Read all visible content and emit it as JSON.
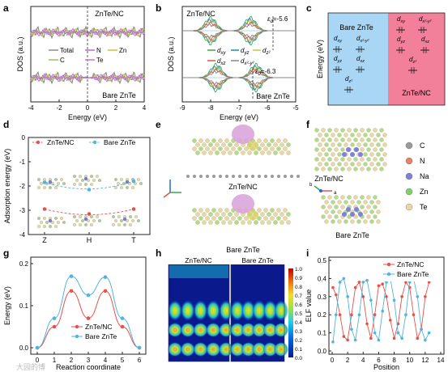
{
  "panel_labels": {
    "a": "a",
    "b": "b",
    "c": "c",
    "d": "d",
    "e": "e",
    "f": "f",
    "g": "g",
    "h": "h",
    "i": "i"
  },
  "colors": {
    "total": "#8a8a8a",
    "n": "#b06ad8",
    "zn": "#c8c23a",
    "c": "#8fc75a",
    "te": "#d070c8",
    "red": "#e8504a",
    "blue": "#4fb4e0",
    "green": "#3aa657",
    "cyan": "#1a8fb0",
    "c_bare_bg": "#aad6f5",
    "c_nc_bg": "#f2809a"
  },
  "watermark": "大园的博",
  "chart_data": [
    {
      "id": "a",
      "type": "line",
      "xlabel": "Energy (eV)",
      "ylabel": "DOS (a.u.)",
      "xlim": [
        -4,
        4
      ],
      "xticks": [
        -4,
        -2,
        0,
        2,
        4
      ],
      "labels": [
        "ZnTe/NC",
        "Bare ZnTe"
      ],
      "legend": [
        "Total",
        "N",
        "Zn",
        "C",
        "Te"
      ],
      "legend_placement": "middle",
      "grid": false
    },
    {
      "id": "b",
      "type": "line",
      "xlabel": "Energy (eV)",
      "ylabel": "DOS (a.u.)",
      "xlim": [
        -9,
        -5
      ],
      "xticks": [
        -9,
        -8,
        -7,
        -6,
        -5
      ],
      "labels": [
        "ZnTe/NC",
        "Bare ZnTe"
      ],
      "legend": [
        "d",
        "d",
        "d",
        "d",
        "d"
      ],
      "legend_sub": [
        "xy",
        "yz",
        "z²",
        "xz",
        "x²-y²"
      ],
      "annotations": [
        {
          "text": "ε",
          "sub": "d",
          "value_text": "=-5.6",
          "x": -5.6
        },
        {
          "text": "ε",
          "sub": "d",
          "value_text": "=-6.3",
          "x": -6.3
        }
      ],
      "grid": false
    },
    {
      "id": "c",
      "type": "table",
      "ylabel": "Energy (eV)",
      "columns": [
        "Bare ZnTe",
        "ZnTe/NC"
      ],
      "bare_levels": [
        "d",
        "d",
        "d",
        "d",
        "d"
      ],
      "bare_sub": [
        "xy",
        "x²-y²",
        "yz",
        "xz",
        "z²"
      ],
      "nc_levels": [
        "d",
        "d",
        "d",
        "d",
        "d"
      ],
      "nc_sub": [
        "xy",
        "x²-y²",
        "yz",
        "xz",
        "z²"
      ]
    },
    {
      "id": "d",
      "type": "line",
      "ylabel": "Adsorption energy (eV)",
      "categories": [
        "Z",
        "H",
        "T"
      ],
      "ylim": [
        -4,
        0
      ],
      "yticks": [
        0,
        -1,
        -2,
        -3,
        -4
      ],
      "series": [
        {
          "name": "ZnTe/NC",
          "values": [
            -2.95,
            -3.15,
            -2.95
          ]
        },
        {
          "name": "Bare ZnTe",
          "values": [
            -1.85,
            -2.15,
            -1.8
          ]
        }
      ],
      "legend_placement": "top",
      "grid": false
    },
    {
      "id": "e",
      "type": "table",
      "labels": [
        "ZnTe/NC",
        "Bare ZnTe"
      ]
    },
    {
      "id": "f",
      "type": "table",
      "labels": [
        "ZnTe/NC",
        "Bare ZnTe"
      ],
      "legend": [
        "C",
        "N",
        "Na",
        "Zn",
        "Te"
      ],
      "axes": [
        "c",
        "b",
        "a"
      ]
    },
    {
      "id": "g",
      "type": "line",
      "xlabel": "Reaction coordinate",
      "ylabel": "Energy (eV)",
      "xlim": [
        0,
        6
      ],
      "xticks": [
        0,
        1,
        2,
        3,
        4,
        5,
        6
      ],
      "ylim": [
        0,
        0.2
      ],
      "yticks": [
        0.0,
        0.1,
        0.2
      ],
      "x": [
        0,
        1,
        2,
        3,
        4,
        5,
        6
      ],
      "series": [
        {
          "name": "ZnTe/NC",
          "values": [
            0.0,
            0.05,
            0.135,
            0.07,
            0.135,
            0.05,
            0.0
          ]
        },
        {
          "name": "Bare ZnTe",
          "values": [
            0.0,
            0.07,
            0.17,
            0.125,
            0.168,
            0.07,
            0.0
          ]
        }
      ],
      "legend_placement": "bottom-center",
      "grid": false
    },
    {
      "id": "h",
      "type": "heatmap",
      "labels": [
        "ZnTe/NC",
        "Bare ZnTe"
      ],
      "colorbar_ticks": [
        "1.0",
        "0.9",
        "0.8",
        "0.7",
        "0.6",
        "0.5",
        "0.4",
        "0.3",
        "0.2",
        "0.1",
        "0.0"
      ]
    },
    {
      "id": "i",
      "type": "line",
      "xlabel": "Position",
      "ylabel": "ELF value",
      "xlim": [
        0,
        14
      ],
      "xticks": [
        0,
        2,
        4,
        6,
        8,
        10,
        12,
        14
      ],
      "ylim": [
        0,
        0.5
      ],
      "yticks": [
        0.0,
        0.1,
        0.2,
        0.3,
        0.4,
        0.5
      ],
      "series": [
        {
          "name": "ZnTe/NC",
          "x": [
            0.1,
            0.5,
            1,
            1.5,
            2,
            2.5,
            3,
            3.5,
            4,
            4.5,
            5,
            5.5,
            6,
            6.5,
            7,
            7.5,
            8,
            8.5,
            9,
            9.5,
            10,
            10.5,
            11,
            11.5,
            12,
            12.5
          ],
          "values": [
            0.35,
            0.31,
            0.2,
            0.08,
            0.06,
            0.2,
            0.35,
            0.38,
            0.3,
            0.15,
            0.07,
            0.2,
            0.36,
            0.37,
            0.3,
            0.17,
            0.07,
            0.15,
            0.3,
            0.38,
            0.35,
            0.2,
            0.07,
            0.12,
            0.3,
            0.38
          ]
        },
        {
          "name": "Bare ZnTe",
          "x": [
            0.1,
            0.5,
            1,
            1.5,
            2,
            2.5,
            3,
            3.5,
            4,
            4.5,
            5,
            5.5,
            6,
            6.5,
            7,
            7.5,
            8,
            8.5,
            9,
            9.5,
            10,
            10.5,
            11,
            11.5,
            12,
            12.5
          ],
          "values": [
            0.05,
            0.2,
            0.38,
            0.4,
            0.3,
            0.12,
            0.06,
            0.2,
            0.38,
            0.39,
            0.28,
            0.1,
            0.06,
            0.22,
            0.38,
            0.4,
            0.28,
            0.1,
            0.07,
            0.2,
            0.38,
            0.4,
            0.3,
            0.12,
            0.06,
            0.1
          ]
        }
      ],
      "legend_placement": "top-right",
      "grid": false
    }
  ]
}
